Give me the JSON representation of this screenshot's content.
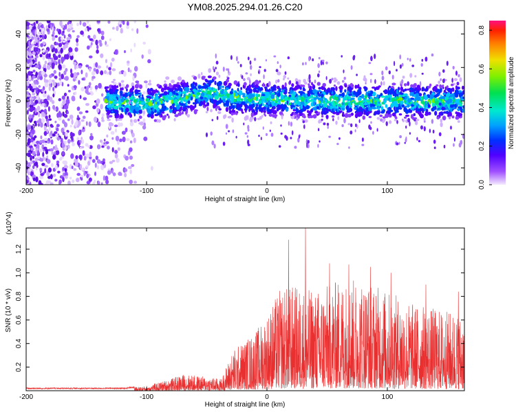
{
  "title": "YM08.2025.294.01.26.C20",
  "chart_data": [
    {
      "type": "heatmap",
      "name": "spectrogram",
      "xlabel": "Height of straight line (km)",
      "ylabel": "Frequency (Hz)",
      "xlim": [
        -200,
        164
      ],
      "ylim": [
        -50,
        48
      ],
      "xticks": [
        -200,
        -100,
        0,
        100
      ],
      "yticks": [
        -40,
        -20,
        0,
        20,
        40
      ],
      "colorbar": {
        "label": "Normalized spectral amplitude",
        "range": [
          0.0,
          0.85
        ],
        "ticks": [
          "0.0",
          "0.2",
          "0.4",
          "0.6",
          "0.8"
        ]
      },
      "features": {
        "noise_region_x": [
          -200,
          -95
        ],
        "band_start_x": -134,
        "band_center_trend": [
          [
            -134,
            0
          ],
          [
            -100,
            -2
          ],
          [
            -80,
            0
          ],
          [
            -45,
            6
          ],
          [
            -30,
            2
          ],
          [
            0,
            1
          ],
          [
            60,
            0
          ],
          [
            164,
            0
          ]
        ],
        "band_halfwidth_hz": 6
      }
    },
    {
      "type": "line",
      "name": "snr",
      "xlabel": "Height of straight line (km)",
      "ylabel": "SNR (10 * v/v)",
      "yscale_label": "(x10^4)",
      "xlim": [
        -200,
        164
      ],
      "ylim": [
        0,
        1.38
      ],
      "xticks": [
        -200,
        -100,
        0,
        100
      ],
      "yticks": [
        "0.2",
        "0.4",
        "0.6",
        "0.8",
        "1.0",
        "1.2"
      ],
      "color": "#e83030",
      "envelope": [
        [
          -200,
          0.02
        ],
        [
          -120,
          0.02
        ],
        [
          -100,
          0.04
        ],
        [
          -80,
          0.1
        ],
        [
          -70,
          0.14
        ],
        [
          -50,
          0.12
        ],
        [
          -38,
          0.1
        ],
        [
          -28,
          0.35
        ],
        [
          -10,
          0.5
        ],
        [
          0,
          0.65
        ],
        [
          10,
          0.85
        ],
        [
          20,
          0.9
        ],
        [
          40,
          0.85
        ],
        [
          60,
          0.95
        ],
        [
          80,
          0.95
        ],
        [
          100,
          0.85
        ],
        [
          120,
          0.75
        ],
        [
          140,
          0.7
        ],
        [
          164,
          0.65
        ]
      ],
      "peaks": [
        [
          32,
          1.38
        ],
        [
          18,
          1.28
        ],
        [
          52,
          1.08
        ],
        [
          68,
          1.07
        ],
        [
          86,
          1.05
        ],
        [
          103,
          1.0
        ],
        [
          132,
          0.9
        ],
        [
          159,
          0.84
        ]
      ]
    }
  ]
}
